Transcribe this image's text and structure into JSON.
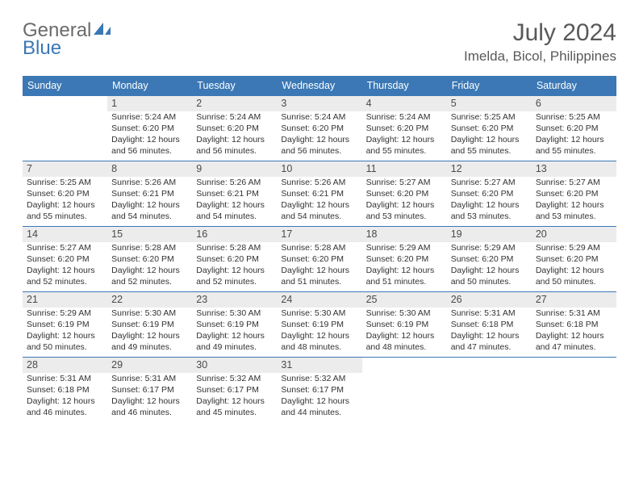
{
  "logo": {
    "text1": "General",
    "text2": "Blue"
  },
  "title": {
    "month": "July 2024",
    "location": "Imelda, Bicol, Philippines"
  },
  "colors": {
    "header_bg": "#3b78b5",
    "header_text": "#ffffff",
    "daynum_bg": "#ececec",
    "border": "#3b78b5",
    "page_bg": "#ffffff",
    "text": "#323232",
    "title_text": "#595959",
    "logo_gray": "#6a6a6a",
    "logo_blue": "#3b78b5"
  },
  "typography": {
    "month_fontsize": 30,
    "location_fontsize": 17,
    "logo_fontsize": 24,
    "dayname_fontsize": 12.5,
    "daynum_fontsize": 12.5,
    "cell_fontsize": 10.5
  },
  "dayNames": [
    "Sunday",
    "Monday",
    "Tuesday",
    "Wednesday",
    "Thursday",
    "Friday",
    "Saturday"
  ],
  "weeks": [
    [
      null,
      {
        "n": "1",
        "sr": "5:24 AM",
        "ss": "6:20 PM",
        "dl": "12 hours and 56 minutes."
      },
      {
        "n": "2",
        "sr": "5:24 AM",
        "ss": "6:20 PM",
        "dl": "12 hours and 56 minutes."
      },
      {
        "n": "3",
        "sr": "5:24 AM",
        "ss": "6:20 PM",
        "dl": "12 hours and 56 minutes."
      },
      {
        "n": "4",
        "sr": "5:24 AM",
        "ss": "6:20 PM",
        "dl": "12 hours and 55 minutes."
      },
      {
        "n": "5",
        "sr": "5:25 AM",
        "ss": "6:20 PM",
        "dl": "12 hours and 55 minutes."
      },
      {
        "n": "6",
        "sr": "5:25 AM",
        "ss": "6:20 PM",
        "dl": "12 hours and 55 minutes."
      }
    ],
    [
      {
        "n": "7",
        "sr": "5:25 AM",
        "ss": "6:20 PM",
        "dl": "12 hours and 55 minutes."
      },
      {
        "n": "8",
        "sr": "5:26 AM",
        "ss": "6:21 PM",
        "dl": "12 hours and 54 minutes."
      },
      {
        "n": "9",
        "sr": "5:26 AM",
        "ss": "6:21 PM",
        "dl": "12 hours and 54 minutes."
      },
      {
        "n": "10",
        "sr": "5:26 AM",
        "ss": "6:21 PM",
        "dl": "12 hours and 54 minutes."
      },
      {
        "n": "11",
        "sr": "5:27 AM",
        "ss": "6:20 PM",
        "dl": "12 hours and 53 minutes."
      },
      {
        "n": "12",
        "sr": "5:27 AM",
        "ss": "6:20 PM",
        "dl": "12 hours and 53 minutes."
      },
      {
        "n": "13",
        "sr": "5:27 AM",
        "ss": "6:20 PM",
        "dl": "12 hours and 53 minutes."
      }
    ],
    [
      {
        "n": "14",
        "sr": "5:27 AM",
        "ss": "6:20 PM",
        "dl": "12 hours and 52 minutes."
      },
      {
        "n": "15",
        "sr": "5:28 AM",
        "ss": "6:20 PM",
        "dl": "12 hours and 52 minutes."
      },
      {
        "n": "16",
        "sr": "5:28 AM",
        "ss": "6:20 PM",
        "dl": "12 hours and 52 minutes."
      },
      {
        "n": "17",
        "sr": "5:28 AM",
        "ss": "6:20 PM",
        "dl": "12 hours and 51 minutes."
      },
      {
        "n": "18",
        "sr": "5:29 AM",
        "ss": "6:20 PM",
        "dl": "12 hours and 51 minutes."
      },
      {
        "n": "19",
        "sr": "5:29 AM",
        "ss": "6:20 PM",
        "dl": "12 hours and 50 minutes."
      },
      {
        "n": "20",
        "sr": "5:29 AM",
        "ss": "6:20 PM",
        "dl": "12 hours and 50 minutes."
      }
    ],
    [
      {
        "n": "21",
        "sr": "5:29 AM",
        "ss": "6:19 PM",
        "dl": "12 hours and 50 minutes."
      },
      {
        "n": "22",
        "sr": "5:30 AM",
        "ss": "6:19 PM",
        "dl": "12 hours and 49 minutes."
      },
      {
        "n": "23",
        "sr": "5:30 AM",
        "ss": "6:19 PM",
        "dl": "12 hours and 49 minutes."
      },
      {
        "n": "24",
        "sr": "5:30 AM",
        "ss": "6:19 PM",
        "dl": "12 hours and 48 minutes."
      },
      {
        "n": "25",
        "sr": "5:30 AM",
        "ss": "6:19 PM",
        "dl": "12 hours and 48 minutes."
      },
      {
        "n": "26",
        "sr": "5:31 AM",
        "ss": "6:18 PM",
        "dl": "12 hours and 47 minutes."
      },
      {
        "n": "27",
        "sr": "5:31 AM",
        "ss": "6:18 PM",
        "dl": "12 hours and 47 minutes."
      }
    ],
    [
      {
        "n": "28",
        "sr": "5:31 AM",
        "ss": "6:18 PM",
        "dl": "12 hours and 46 minutes."
      },
      {
        "n": "29",
        "sr": "5:31 AM",
        "ss": "6:17 PM",
        "dl": "12 hours and 46 minutes."
      },
      {
        "n": "30",
        "sr": "5:32 AM",
        "ss": "6:17 PM",
        "dl": "12 hours and 45 minutes."
      },
      {
        "n": "31",
        "sr": "5:32 AM",
        "ss": "6:17 PM",
        "dl": "12 hours and 44 minutes."
      },
      null,
      null,
      null
    ]
  ],
  "labels": {
    "sunrise": "Sunrise:",
    "sunset": "Sunset:",
    "daylight": "Daylight:"
  }
}
